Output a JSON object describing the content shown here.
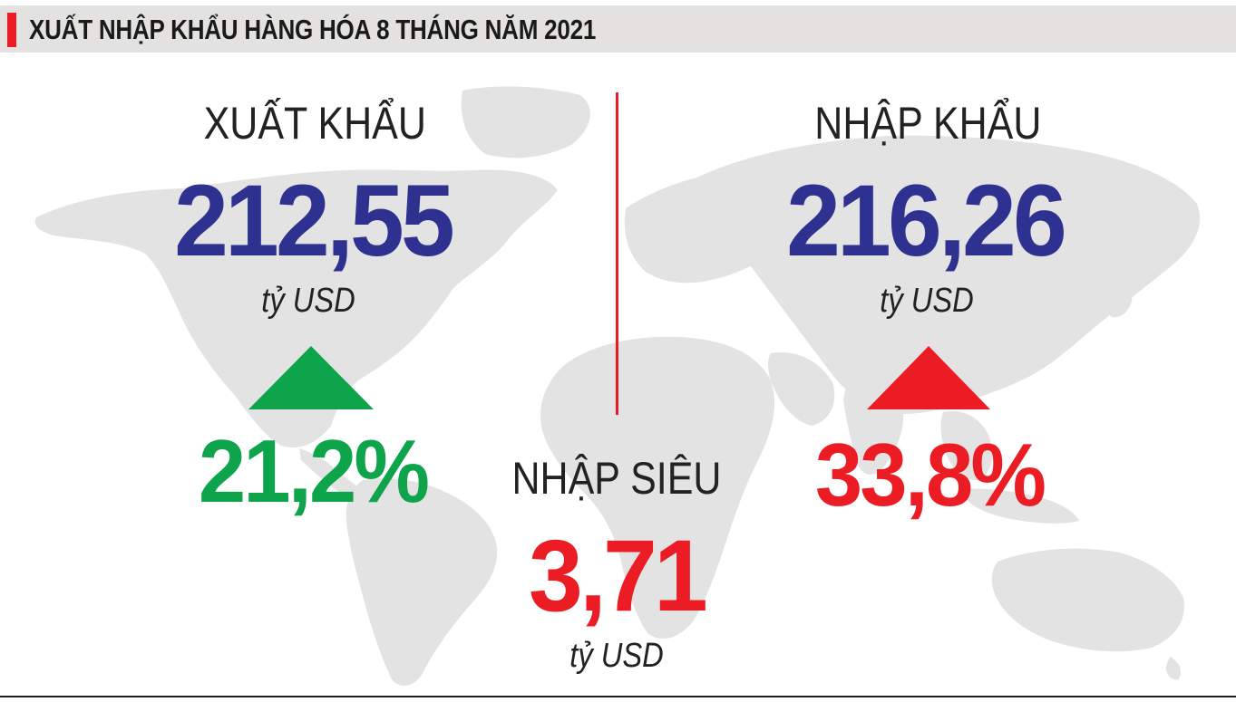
{
  "header": {
    "title": "XUẤT NHẬP KHẨU HÀNG HÓA 8 THÁNG NĂM 2021"
  },
  "export": {
    "label": "XUẤT KHẨU",
    "value": "212,55",
    "unit": "tỷ USD",
    "growth": "21,2%",
    "direction_icon": "triangle-up-icon"
  },
  "import": {
    "label": "NHẬP KHẨU",
    "value": "216,26",
    "unit": "tỷ USD",
    "growth": "33,8%",
    "direction_icon": "triangle-up-icon"
  },
  "trade_deficit": {
    "label": "NHẬP SIÊU",
    "value": "3,71",
    "unit": "tỷ USD"
  },
  "colors": {
    "accent_red": "#ec1c24",
    "value_blue": "#2e3190",
    "growth_green": "#0ea44b",
    "map_gray": "#e3e3e3",
    "header_bg": "#e4e2e1"
  }
}
